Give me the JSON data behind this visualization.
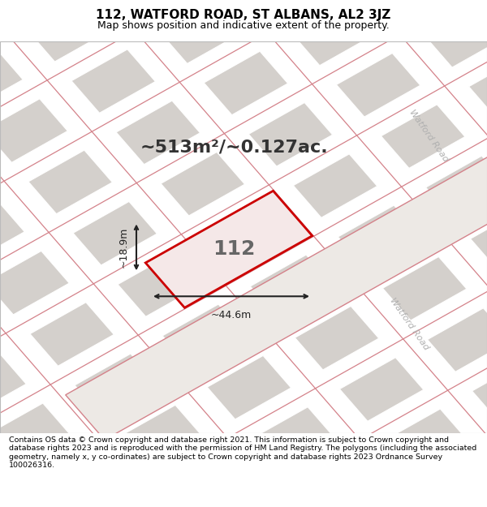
{
  "title_line1": "112, WATFORD ROAD, ST ALBANS, AL2 3JZ",
  "title_line2": "Map shows position and indicative extent of the property.",
  "area_text": "~513m²/~0.127ac.",
  "house_number": "112",
  "dim_width": "~44.6m",
  "dim_height": "~18.9m",
  "watford_road_label": "Watford Road",
  "footer_text": "Contains OS data © Crown copyright and database right 2021. This information is subject to Crown copyright and database rights 2023 and is reproduced with the permission of HM Land Registry. The polygons (including the associated geometry, namely x, y co-ordinates) are subject to Crown copyright and database rights 2023 Ordnance Survey 100026316.",
  "bg_color": "#f0eeeb",
  "map_bg_color": "#ede9e5",
  "block_color": "#d4d0cc",
  "road_line_color": "#d4828a",
  "highlight_color": "#cc0000",
  "highlight_fill": "#f5e8e8",
  "dim_color": "#222222",
  "footer_bg": "#ffffff",
  "title_bg": "#ffffff",
  "title_fontsize": 11,
  "subtitle_fontsize": 9,
  "area_fontsize": 16,
  "house_fontsize": 18,
  "dim_fontsize": 9,
  "watford_fontsize": 8
}
